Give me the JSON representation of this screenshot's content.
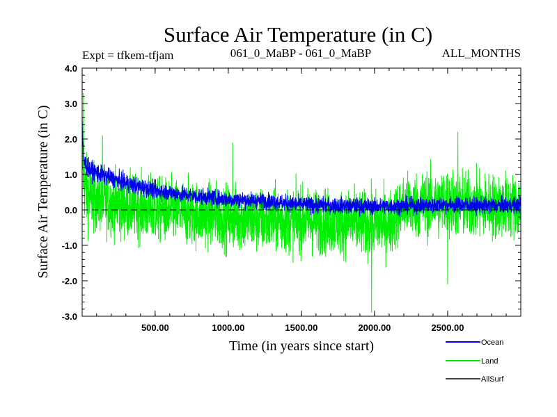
{
  "chart_data": {
    "type": "line",
    "title": "Surface Air Temperature (in C)",
    "subtitle_left": "Expt = tfkem-tfjam",
    "subtitle_center": "061_0_MaBP - 061_0_MaBP",
    "subtitle_right": "ALL_MONTHS",
    "xlabel": "Time (in years since start)",
    "ylabel": "Surface Air Temperature (in C)",
    "xlim": [
      1,
      3000
    ],
    "ylim": [
      -3.0,
      4.0
    ],
    "x_ticks": [
      500,
      1000,
      1500,
      2000,
      2500
    ],
    "x_tick_labels": [
      "500.00",
      "1000.00",
      "1500.00",
      "2000.00",
      "2500.00"
    ],
    "y_ticks": [
      -3.0,
      -2.0,
      -1.0,
      0.0,
      1.0,
      2.0,
      3.0,
      4.0
    ],
    "y_tick_labels": [
      "-3.0",
      "-2.0",
      "-1.0",
      "0.0",
      "1.0",
      "2.0",
      "3.0",
      "4.0"
    ],
    "zero_line": true,
    "legend_position": "bottom-right",
    "series": [
      {
        "name": "Land",
        "color": "#00ee00",
        "x": [
          1,
          5,
          15,
          30,
          50,
          100,
          200,
          300,
          500,
          750,
          1000,
          1250,
          1500,
          1750,
          2000,
          2100,
          2200,
          2500,
          2750,
          3000
        ],
        "mean": [
          2.0,
          1.5,
          0.7,
          0.5,
          0.4,
          0.3,
          0.2,
          0.1,
          0.0,
          -0.1,
          -0.2,
          -0.3,
          -0.3,
          -0.35,
          -0.4,
          -0.4,
          0.1,
          0.2,
          0.1,
          0.1
        ],
        "spread": [
          1.2,
          1.2,
          1.1,
          1.1,
          1.1,
          1.0,
          1.0,
          1.0,
          1.0,
          1.0,
          1.0,
          1.0,
          1.0,
          1.0,
          1.0,
          1.0,
          1.0,
          1.05,
          1.0,
          1.0
        ],
        "peaks": [
          [
            10,
            3.3
          ],
          [
            140,
            2.1
          ],
          [
            1030,
            1.9
          ],
          [
            1980,
            -2.9
          ],
          [
            2570,
            2.2
          ],
          [
            2500,
            -2.1
          ]
        ]
      },
      {
        "name": "Ocean",
        "color": "#0000ee",
        "x": [
          1,
          5,
          15,
          30,
          50,
          100,
          200,
          300,
          500,
          750,
          1000,
          1250,
          1500,
          1750,
          2000,
          2250,
          2500,
          2750,
          3000
        ],
        "mean": [
          2.5,
          1.8,
          1.35,
          1.25,
          1.15,
          1.05,
          0.9,
          0.75,
          0.55,
          0.4,
          0.3,
          0.25,
          0.15,
          0.12,
          0.1,
          0.12,
          0.15,
          0.12,
          0.15
        ],
        "spread": [
          0.4,
          0.35,
          0.3,
          0.3,
          0.28,
          0.28,
          0.27,
          0.27,
          0.26,
          0.25,
          0.25,
          0.25,
          0.25,
          0.25,
          0.25,
          0.25,
          0.25,
          0.25,
          0.25
        ]
      },
      {
        "name": "AllSurf",
        "color": "#000000",
        "x": [],
        "mean": []
      }
    ]
  },
  "legend": {
    "ocean_label": "Ocean",
    "land_label": "Land",
    "allsurf_label": "AllSurf"
  }
}
